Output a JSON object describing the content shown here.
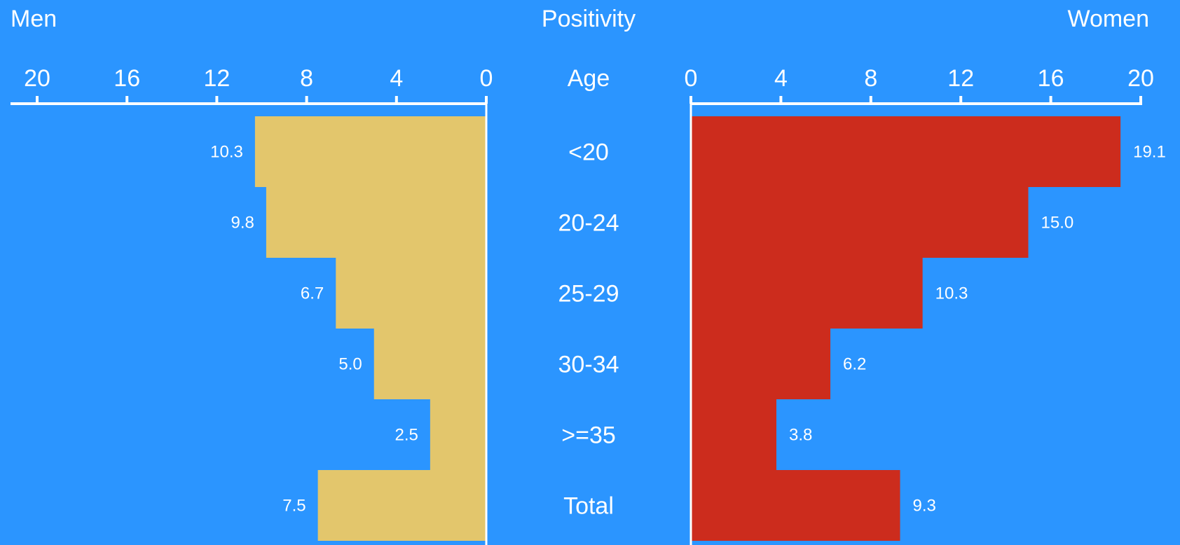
{
  "chart_data": {
    "type": "bar",
    "layout": "population-pyramid",
    "title": "Positivity",
    "center_axis_label": "Age",
    "categories": [
      "<20",
      "20-24",
      "25-29",
      "30-34",
      ">=35",
      "Total"
    ],
    "xlim": [
      0,
      20
    ],
    "ticks": [
      0,
      4,
      8,
      12,
      16,
      20
    ],
    "series": [
      {
        "name": "Men",
        "side": "left",
        "color": "#e3c66c",
        "values": [
          10.3,
          9.8,
          6.7,
          5.0,
          2.5,
          7.5
        ]
      },
      {
        "name": "Women",
        "side": "right",
        "color": "#cc2c1d",
        "values": [
          19.1,
          15.0,
          10.3,
          6.2,
          3.8,
          9.3
        ]
      }
    ],
    "grid": false
  }
}
